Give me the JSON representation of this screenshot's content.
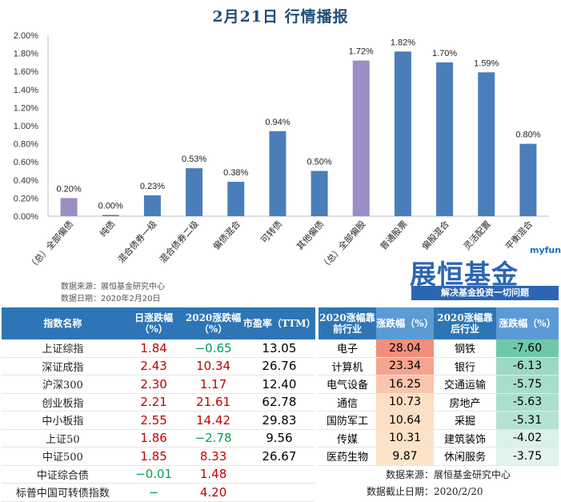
{
  "title": "2月21日  行情播报",
  "chart_data": {
    "type": "bar",
    "categories": [
      "（总）全部偏债",
      "纯债",
      "混合债券一级",
      "混合债券二级",
      "偏债混合",
      "可转债",
      "其他偏债",
      "（总）全部偏股",
      "普通股票",
      "偏股混合",
      "灵活配置",
      "平衡混合"
    ],
    "values": [
      0.2,
      0.0,
      0.23,
      0.53,
      0.38,
      0.94,
      0.5,
      1.72,
      1.82,
      1.7,
      1.59,
      0.8
    ],
    "data_labels": [
      "0.20%",
      "0.00%",
      "0.23%",
      "0.53%",
      "0.38%",
      "0.94%",
      "0.50%",
      "1.72%",
      "1.82%",
      "1.70%",
      "1.59%",
      "0.80%"
    ],
    "highlight": [
      0,
      7
    ],
    "colors": {
      "bar": "#4a7ebb",
      "highlight": "#9b8ec4"
    },
    "ylim": [
      0,
      2.0
    ],
    "yticks": [
      "0.00%",
      "0.20%",
      "0.40%",
      "0.60%",
      "0.80%",
      "1.00%",
      "1.20%",
      "1.40%",
      "1.60%",
      "1.80%",
      "2.00%"
    ],
    "grid": false,
    "legend": "none"
  },
  "source": {
    "line1": "数据来源：展恒基金研究中心",
    "line2": "数据日期：2020年2月20日"
  },
  "logo": {
    "small": "myfund",
    "name": "展恒基金",
    "slogan": "解决基金投资一切问题"
  },
  "index_table": {
    "headers": [
      "指数名称",
      "日涨跌幅（%）",
      "2020涨跌幅（%）",
      "市盈率（TTM）"
    ],
    "rows": [
      [
        "上证综指",
        "1.84",
        "−0.65",
        "13.05"
      ],
      [
        "深证成指",
        "2.43",
        "10.34",
        "26.76"
      ],
      [
        "沪深300",
        "2.30",
        "1.17",
        "12.40"
      ],
      [
        "创业板指",
        "2.21",
        "21.61",
        "62.78"
      ],
      [
        "中小板指",
        "2.55",
        "14.42",
        "29.83"
      ],
      [
        "上证50",
        "1.86",
        "−2.78",
        "9.56"
      ],
      [
        "中证500",
        "1.85",
        "8.33",
        "26.67"
      ],
      [
        "中证综合债",
        "−0.01",
        "1.48",
        ""
      ],
      [
        "标普中国可转债指数",
        "−",
        "4.20",
        ""
      ]
    ]
  },
  "industry_table": {
    "headers": [
      "2020涨幅靠前行业",
      "涨跌幅（%）",
      "2020涨幅靠后行业",
      "涨跌幅（%）"
    ],
    "rows": [
      [
        "电子",
        "28.04",
        "钢铁",
        "-7.60"
      ],
      [
        "计算机",
        "23.34",
        "银行",
        "-6.13"
      ],
      [
        "电气设备",
        "16.25",
        "交通运输",
        "-5.75"
      ],
      [
        "通信",
        "10.73",
        "房地产",
        "-5.63"
      ],
      [
        "国防军工",
        "10.64",
        "采掘",
        "-5.31"
      ],
      [
        "传媒",
        "10.31",
        "建筑装饰",
        "-4.02"
      ],
      [
        "医药生物",
        "9.87",
        "休闲服务",
        "-3.75"
      ]
    ],
    "source_label": "数据来源：",
    "source_value": "展恒基金研究中心",
    "date_label": "数据截止日期：",
    "date_value": "2020/2/20"
  }
}
